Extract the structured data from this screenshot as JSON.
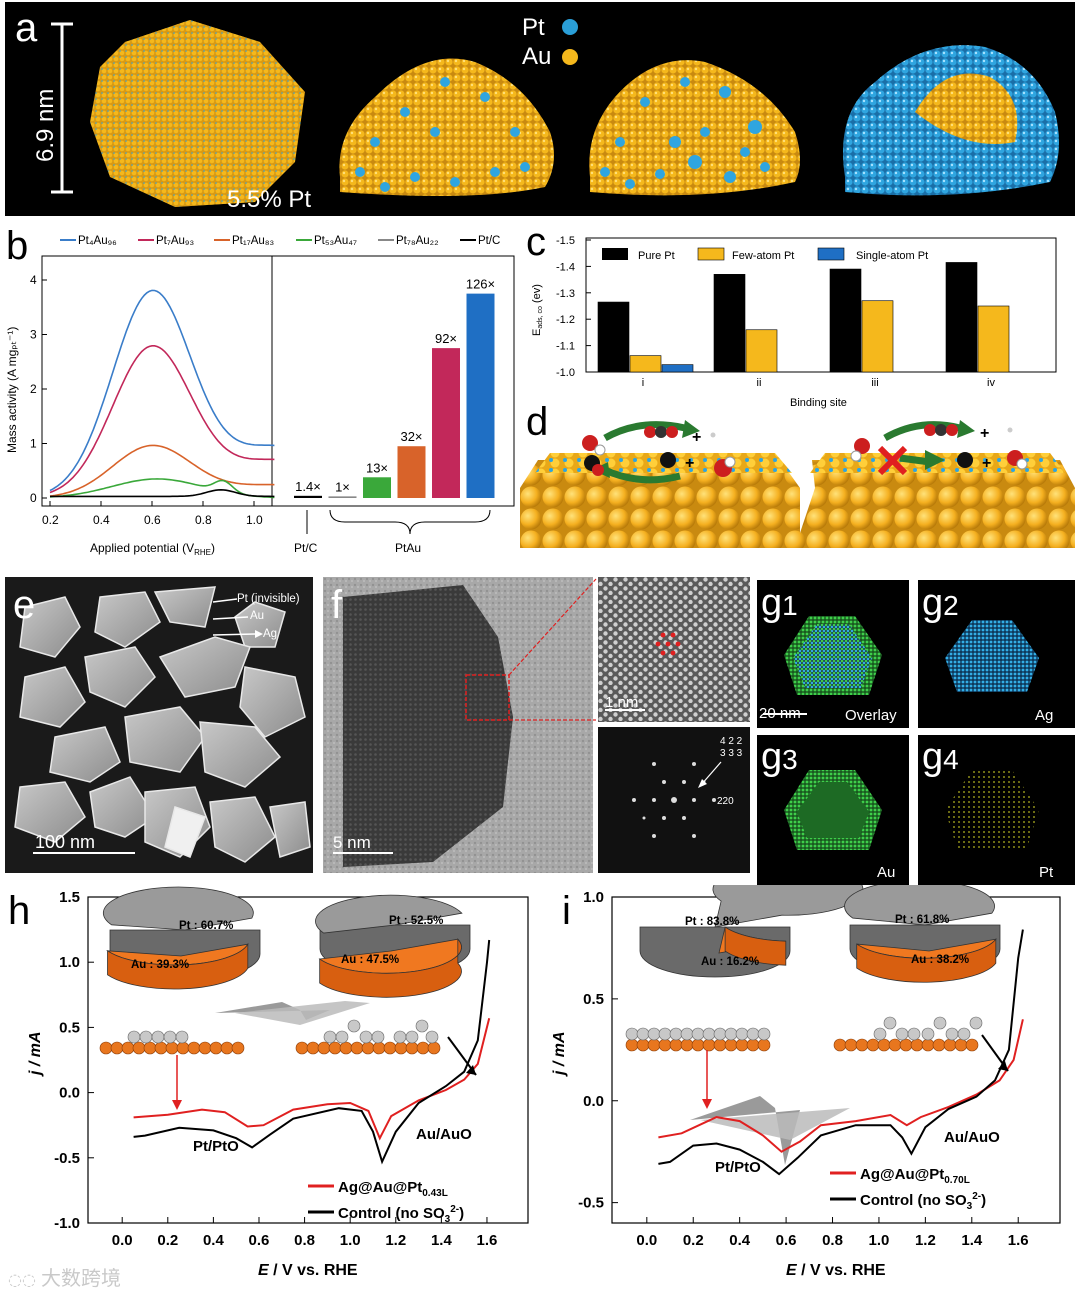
{
  "panel_a": {
    "letter": "a",
    "scale_label": "6.9 nm",
    "pt_percent": "5.5% Pt",
    "legend": [
      {
        "label": "Pt",
        "color": "#2a9fd8"
      },
      {
        "label": "Au",
        "color": "#f5b81c"
      }
    ]
  },
  "panel_b": {
    "letter": "b",
    "legend": [
      {
        "label": "Pt₄Au₉₆",
        "color": "#3a7dc9"
      },
      {
        "label": "Pt₇Au₉₃",
        "color": "#c2285a"
      },
      {
        "label": "Pt₁₇Au₈₃",
        "color": "#d8632a"
      },
      {
        "label": "Pt₅₃Au₄₇",
        "color": "#3aa83a"
      },
      {
        "label": "Pt₇₈Au₂₂",
        "color": "#888888"
      },
      {
        "label": "Pt/C",
        "color": "#000000"
      }
    ],
    "ylabel": "Mass activity (A mgₚₜ⁻¹)",
    "xlabel": "Applied potential (V_RHE)",
    "xlabel_main": "Applied potential (V",
    "xlabel_sub": "RHE",
    "xlabel_end": ")",
    "yticks": [
      "0",
      "1",
      "2",
      "3",
      "4"
    ],
    "xticks": [
      "0.2",
      "0.4",
      "0.6",
      "0.8",
      "1.0"
    ],
    "bars": [
      {
        "label": "1.4×",
        "value": 0.04,
        "color": "#000000"
      },
      {
        "label": "1×",
        "value": 0.03,
        "color": "#888888"
      },
      {
        "label": "13×",
        "value": 0.38,
        "color": "#3aa83a"
      },
      {
        "label": "32×",
        "value": 0.95,
        "color": "#d8632a"
      },
      {
        "label": "92×",
        "value": 2.75,
        "color": "#c2285a"
      },
      {
        "label": "126×",
        "value": 3.75,
        "color": "#1f6fc4"
      }
    ],
    "group_labels": [
      "Pt/C",
      "PtAu"
    ]
  },
  "panel_c": {
    "letter": "c",
    "legend": [
      {
        "label": "Pure Pt",
        "color": "#000000"
      },
      {
        "label": "Few-atom Pt",
        "color": "#f5b81c"
      },
      {
        "label": "Single-atom Pt",
        "color": "#1f6fc4"
      }
    ],
    "ylabel": "E_ads, co (ev)",
    "ylabel_main": "E",
    "ylabel_sub": "ads, co",
    "ylabel_end": " (ev)",
    "xlabel": "Binding site",
    "yticks": [
      "-1.5",
      "-1.4",
      "-1.3",
      "-1.2",
      "-1.1",
      "-1.0"
    ],
    "sites": [
      "i",
      "ii",
      "iii",
      "iv"
    ]
  },
  "panel_d": {
    "letter": "d"
  },
  "panel_e": {
    "letter": "e",
    "annotations": [
      "Pt (invisible)",
      "Au",
      "Ag"
    ],
    "scale": "100 nm"
  },
  "panel_f": {
    "letter": "f",
    "scale_main": "5 nm",
    "scale_inset": "1 nm",
    "fft_labels": [
      "4 2 2",
      "3 3 3",
      "220"
    ]
  },
  "panel_g": {
    "tiles": [
      {
        "letter": "g",
        "sub": "1",
        "label": "Overlay",
        "scale": "20 nm"
      },
      {
        "letter": "g",
        "sub": "2",
        "label": "Ag"
      },
      {
        "letter": "g",
        "sub": "3",
        "label": "Au"
      },
      {
        "letter": "g",
        "sub": "4",
        "label": "Pt"
      }
    ]
  },
  "panel_h": {
    "letter": "h",
    "pies": [
      {
        "pt": "Pt : 60.7%",
        "au": "Au : 39.3%",
        "pt_frac": 0.607
      },
      {
        "pt": "Pt : 52.5%",
        "au": "Au : 47.5%",
        "pt_frac": 0.525
      }
    ],
    "peaks": [
      "Pt/PtO",
      "Au/AuO"
    ],
    "legend": [
      {
        "label": "Ag@Au@Pt",
        "sub": "0.43L",
        "color": "#e02020"
      },
      {
        "label": "Control (no SO",
        "sub": "3",
        "sup": "2-",
        "end": ")",
        "color": "#000000"
      }
    ],
    "ylabel": "j / mA",
    "xlabel_italic": "E",
    "xlabel": " / V vs. RHE",
    "yticks": [
      "1.5",
      "1.0",
      "0.5",
      "0.0",
      "-0.5",
      "-1.0"
    ],
    "xticks": [
      "0.0",
      "0.2",
      "0.4",
      "0.6",
      "0.8",
      "1.0",
      "1.2",
      "1.4",
      "1.6"
    ]
  },
  "panel_i": {
    "letter": "i",
    "pies": [
      {
        "pt": "Pt : 83.8%",
        "au": "Au : 16.2%",
        "pt_frac": 0.838
      },
      {
        "pt": "Pt : 61.8%",
        "au": "Au : 38.2%",
        "pt_frac": 0.618
      }
    ],
    "peaks": [
      "Pt/PtO",
      "Au/AuO"
    ],
    "legend": [
      {
        "label": "Ag@Au@Pt",
        "sub": "0.70L",
        "color": "#e02020"
      },
      {
        "label": "Control (no SO",
        "sub": "3",
        "sup": "2-",
        "end": ")",
        "color": "#000000"
      }
    ],
    "ylabel": "j / mA",
    "xlabel_italic": "E",
    "xlabel": " / V vs. RHE",
    "yticks": [
      "1.0",
      "0.5",
      "0.0",
      "-0.5"
    ],
    "xticks": [
      "0.0",
      "0.2",
      "0.4",
      "0.6",
      "0.8",
      "1.0",
      "1.2",
      "1.4",
      "1.6"
    ]
  },
  "watermark": "大数跨境"
}
